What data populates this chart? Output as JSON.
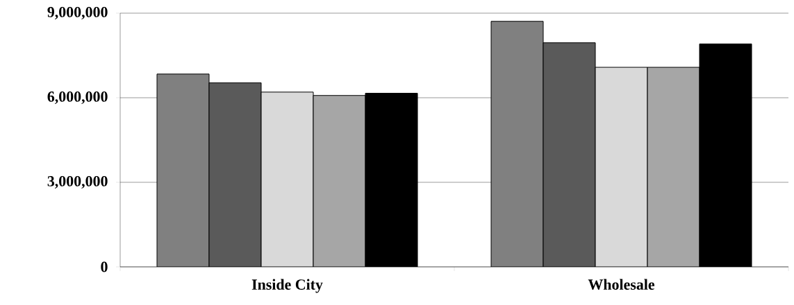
{
  "chart_data": {
    "type": "bar",
    "categories": [
      "Inside City",
      "Wholesale"
    ],
    "series": [
      {
        "color": "#808080",
        "values": [
          6840000,
          8710000
        ]
      },
      {
        "color": "#5a5a5a",
        "values": [
          6530000,
          7950000
        ]
      },
      {
        "color": "#d9d9d9",
        "values": [
          6200000,
          7080000
        ]
      },
      {
        "color": "#a6a6a6",
        "values": [
          6080000,
          7080000
        ]
      },
      {
        "color": "#000000",
        "values": [
          6160000,
          7910000
        ]
      }
    ],
    "ylim": [
      0,
      9000000
    ],
    "yticks": [
      {
        "value": 0,
        "label": "0"
      },
      {
        "value": 3000000,
        "label": "3,000,000"
      },
      {
        "value": 6000000,
        "label": "6,000,000"
      },
      {
        "value": 9000000,
        "label": "9,000,000"
      }
    ],
    "grid": "y"
  }
}
